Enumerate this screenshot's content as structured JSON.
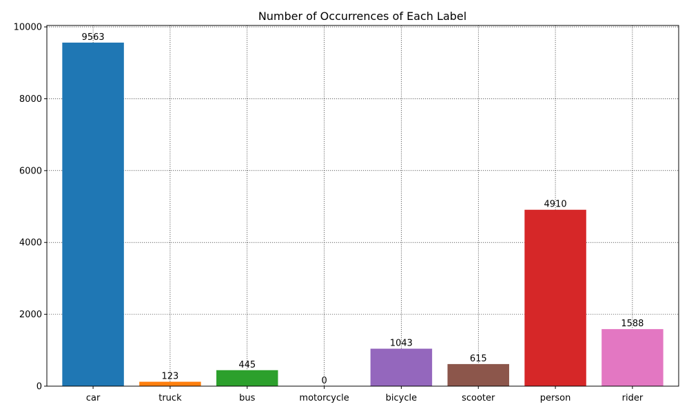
{
  "chart_data": {
    "type": "bar",
    "title": "Number of Occurrences of Each Label",
    "xlabel": "",
    "ylabel": "",
    "categories": [
      "car",
      "truck",
      "bus",
      "motorcycle",
      "bicycle",
      "scooter",
      "person",
      "rider"
    ],
    "values": [
      9563,
      123,
      445,
      0,
      1043,
      615,
      4910,
      1588
    ],
    "colors": [
      "#1f77b4",
      "#ff7f0e",
      "#2ca02c",
      "#d62728",
      "#9467bd",
      "#8c564b",
      "#d62728",
      "#e377c2"
    ],
    "ylim": [
      0,
      10040
    ],
    "yticks": [
      0,
      2000,
      4000,
      6000,
      8000,
      10000
    ],
    "grid": true,
    "legend": "none"
  }
}
